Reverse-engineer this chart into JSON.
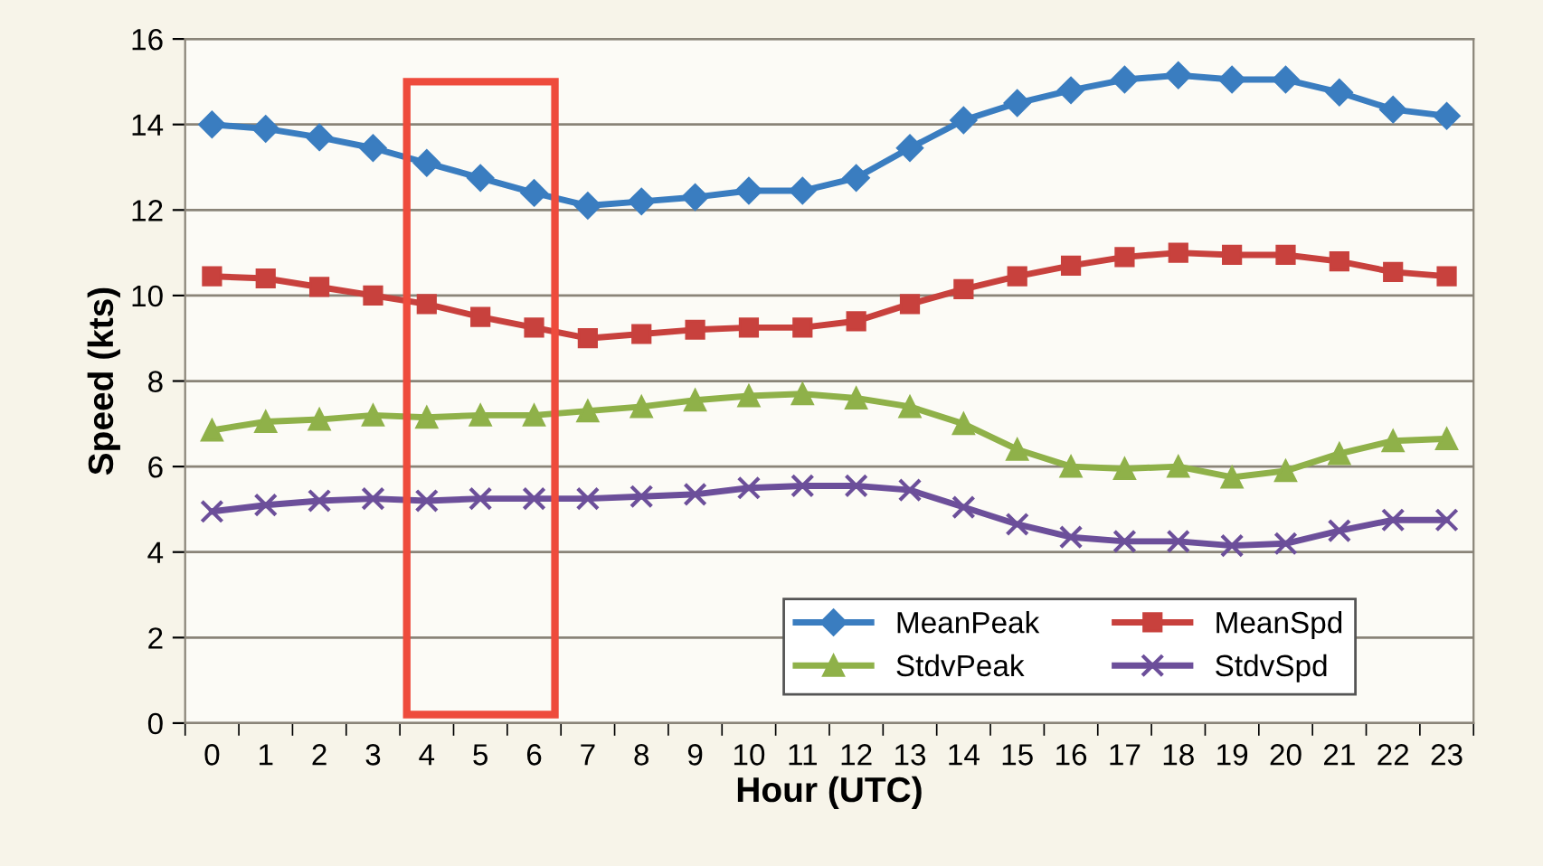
{
  "chart_data": {
    "type": "line",
    "xlabel": "Hour (UTC)",
    "ylabel": "Speed (kts)",
    "categories": [
      "0",
      "1",
      "2",
      "3",
      "4",
      "5",
      "6",
      "7",
      "8",
      "9",
      "10",
      "11",
      "12",
      "13",
      "14",
      "15",
      "16",
      "17",
      "18",
      "19",
      "20",
      "21",
      "22",
      "23"
    ],
    "series": [
      {
        "name": "MeanPeak",
        "color": "#3a7dc0",
        "marker": "diamond",
        "values": [
          14.0,
          13.9,
          13.7,
          13.45,
          13.1,
          12.75,
          12.4,
          12.1,
          12.2,
          12.3,
          12.45,
          12.45,
          12.75,
          13.45,
          14.1,
          14.5,
          14.8,
          15.05,
          15.15,
          15.05,
          15.05,
          14.75,
          14.35,
          14.2
        ]
      },
      {
        "name": "MeanSpd",
        "color": "#c8413d",
        "marker": "square",
        "values": [
          10.45,
          10.4,
          10.2,
          10.0,
          9.8,
          9.5,
          9.25,
          9.0,
          9.1,
          9.2,
          9.25,
          9.25,
          9.4,
          9.8,
          10.15,
          10.45,
          10.7,
          10.9,
          11.0,
          10.95,
          10.95,
          10.8,
          10.55,
          10.45
        ]
      },
      {
        "name": "StdvPeak",
        "color": "#8fb149",
        "marker": "triangle",
        "values": [
          6.85,
          7.05,
          7.1,
          7.2,
          7.15,
          7.2,
          7.2,
          7.3,
          7.4,
          7.55,
          7.65,
          7.7,
          7.6,
          7.4,
          7.0,
          6.4,
          6.0,
          5.95,
          6.0,
          5.75,
          5.9,
          6.3,
          6.6,
          6.65
        ]
      },
      {
        "name": "StdvSpd",
        "color": "#6c4f9a",
        "marker": "cross",
        "values": [
          4.95,
          5.1,
          5.2,
          5.25,
          5.2,
          5.25,
          5.25,
          5.25,
          5.3,
          5.35,
          5.5,
          5.55,
          5.55,
          5.45,
          5.05,
          4.65,
          4.35,
          4.25,
          4.25,
          4.15,
          4.2,
          4.5,
          4.75,
          4.75
        ]
      }
    ],
    "ylim": [
      0,
      16
    ],
    "yticks": [
      0,
      2,
      4,
      6,
      8,
      10,
      12,
      14,
      16
    ],
    "grid": "y",
    "legend": "bottom right",
    "line_style": "solid"
  }
}
